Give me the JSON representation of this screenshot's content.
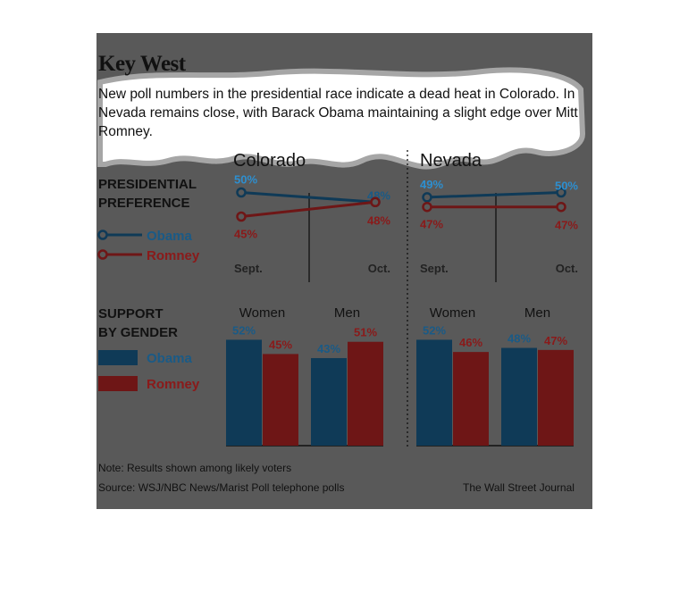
{
  "title": "Key West",
  "subtitle": "New poll numbers in the presidential race indicate a dead heat in Colorado. In Nevada remains close, with Barack Obama maintaining a slight edge over Mitt Romney.",
  "colors": {
    "obama": "#0f3a57",
    "romney": "#6e1616",
    "obama_label": "#1a5a86",
    "romney_label": "#8a1a1a",
    "panel": "#595959"
  },
  "preference_label": [
    "PRESIDENTIAL",
    "PREFERENCE"
  ],
  "gender_label": [
    "SUPPORT",
    "BY GENDER"
  ],
  "legend": {
    "obama": "Obama",
    "romney": "Romney"
  },
  "note": "Note: Results shown among likely voters",
  "source": "Source: WSJ/NBC News/Marist Poll telephone polls",
  "credit": "The Wall Street Journal",
  "chart_data": [
    {
      "type": "line",
      "title": "Colorado",
      "x": [
        "Sept.",
        "Oct."
      ],
      "series": [
        {
          "name": "Obama",
          "values": [
            50,
            48
          ],
          "labels": [
            "50%",
            "48%"
          ]
        },
        {
          "name": "Romney",
          "values": [
            45,
            48
          ],
          "labels": [
            "45%",
            "48%"
          ]
        }
      ]
    },
    {
      "type": "line",
      "title": "Nevada",
      "x": [
        "Sept.",
        "Oct."
      ],
      "series": [
        {
          "name": "Obama",
          "values": [
            49,
            50
          ],
          "labels": [
            "49%",
            "50%"
          ]
        },
        {
          "name": "Romney",
          "values": [
            47,
            47
          ],
          "labels": [
            "47%",
            "47%"
          ]
        }
      ]
    },
    {
      "type": "bar",
      "state": "Colorado",
      "categories": [
        "Women",
        "Men"
      ],
      "series": [
        {
          "name": "Obama",
          "values": [
            52,
            43
          ],
          "labels": [
            "52%",
            "43%"
          ]
        },
        {
          "name": "Romney",
          "values": [
            45,
            51
          ],
          "labels": [
            "45%",
            "51%"
          ]
        }
      ]
    },
    {
      "type": "bar",
      "state": "Nevada",
      "categories": [
        "Women",
        "Men"
      ],
      "series": [
        {
          "name": "Obama",
          "values": [
            52,
            48
          ],
          "labels": [
            "52%",
            "48%"
          ]
        },
        {
          "name": "Romney",
          "values": [
            46,
            47
          ],
          "labels": [
            "46%",
            "47%"
          ]
        }
      ]
    }
  ]
}
